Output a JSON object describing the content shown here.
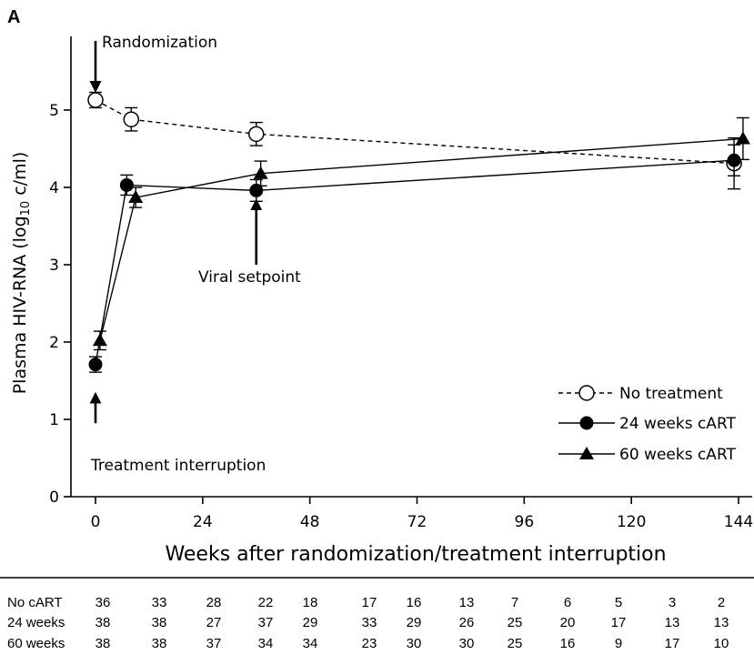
{
  "panel_label": "A",
  "chart_data": {
    "type": "line",
    "title": "",
    "xlabel": "Weeks after randomization/treatment interruption",
    "ylabel": {
      "prefix": "Plasma HIV-RNA (log",
      "subscript": "10",
      "suffix": " c/ml)"
    },
    "xlim": [
      -4,
      146
    ],
    "ylim": [
      0,
      5.85
    ],
    "x_ticks": [
      0,
      24,
      48,
      72,
      96,
      120,
      144
    ],
    "y_ticks": [
      0,
      1,
      2,
      3,
      4,
      5
    ],
    "grid": false,
    "legend_position": "bottom-right",
    "series": [
      {
        "name": "No treatment",
        "marker": "open-circle",
        "line": "dashed",
        "points": [
          {
            "x": 0,
            "y": 5.13,
            "err": 0.1
          },
          {
            "x": 8,
            "y": 4.88,
            "err": 0.15
          },
          {
            "x": 36,
            "y": 4.69,
            "err": 0.15
          },
          {
            "x": 143,
            "y": 4.31,
            "err": 0.33
          }
        ]
      },
      {
        "name": "24 weeks cART",
        "marker": "filled-circle",
        "line": "solid",
        "points": [
          {
            "x": 0,
            "y": 1.71,
            "err": 0.1
          },
          {
            "x": 7,
            "y": 4.03,
            "err": 0.13
          },
          {
            "x": 36,
            "y": 3.96,
            "err": 0.14
          },
          {
            "x": 143,
            "y": 4.35,
            "err": 0.2
          }
        ]
      },
      {
        "name": "60 weeks cART",
        "marker": "filled-triangle",
        "line": "solid",
        "points": [
          {
            "x": 1,
            "y": 2.02,
            "err": 0.12
          },
          {
            "x": 9,
            "y": 3.87,
            "err": 0.13
          },
          {
            "x": 37,
            "y": 4.18,
            "err": 0.16
          },
          {
            "x": 145,
            "y": 4.63,
            "err": 0.27
          }
        ]
      }
    ],
    "annotations": [
      {
        "id": "randomization",
        "text": "Randomization",
        "arrow_x": 0,
        "arrow_from_y": 5.85,
        "arrow_to_y": 5.3,
        "direction": "down"
      },
      {
        "id": "viral-setpoint",
        "text": "Viral setpoint",
        "arrow_x": 36,
        "arrow_from_y": 3.0,
        "arrow_to_y": 3.78,
        "direction": "up"
      },
      {
        "id": "treatment-interruption",
        "text": "Treatment interruption",
        "arrow_x": 0,
        "arrow_from_y": 0.95,
        "arrow_to_y": 1.28,
        "direction": "up"
      }
    ],
    "risk_table": {
      "rows": [
        {
          "label": "No cART",
          "values": [
            "36",
            "33",
            "28",
            "22",
            "18",
            "17",
            "16",
            "13",
            "7",
            "6",
            "5",
            "3",
            "2"
          ]
        },
        {
          "label": "24 weeks",
          "values": [
            "38",
            "38",
            "27",
            "37",
            "29",
            "33",
            "29",
            "26",
            "25",
            "20",
            "17",
            "13",
            "13"
          ]
        },
        {
          "label": "60 weeks",
          "values": [
            "38",
            "38",
            "37",
            "34",
            "34",
            "23",
            "30",
            "30",
            "25",
            "16",
            "9",
            "17",
            "10"
          ]
        }
      ]
    }
  }
}
